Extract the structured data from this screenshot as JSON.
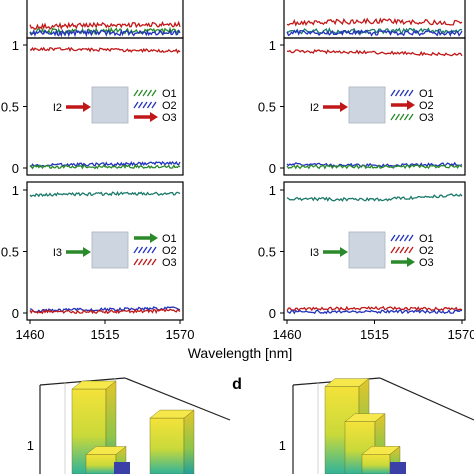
{
  "figure": {
    "xlabel": "Wavelength [nm]",
    "panel_letter_d": "d"
  },
  "colors": {
    "red": "#c01818",
    "blue": "#2233bb",
    "green": "#2a8a2a",
    "teal": "#1c7a6a",
    "box": "#cdd6e0",
    "box_edge": "#aab4c0"
  },
  "chart_data": [
    {
      "type": "line",
      "panel": "top-left-partial",
      "xlim": [
        1460,
        1570
      ],
      "ylim": [
        0,
        1
      ],
      "series": [
        {
          "color": "red",
          "x": [
            1460,
            1515,
            1570
          ],
          "values": [
            0.04,
            0.05,
            0.05
          ]
        },
        {
          "color": "green",
          "x": [
            1460,
            1515,
            1570
          ],
          "values": [
            0.02,
            0.02,
            0.02
          ]
        },
        {
          "color": "blue",
          "x": [
            1460,
            1515,
            1570
          ],
          "values": [
            0.01,
            0.01,
            0.01
          ]
        }
      ]
    },
    {
      "type": "line",
      "panel": "top-right-partial",
      "xlim": [
        1460,
        1570
      ],
      "ylim": [
        0,
        1
      ],
      "series": [
        {
          "color": "red",
          "x": [
            1460,
            1515,
            1570
          ],
          "values": [
            0.06,
            0.07,
            0.06
          ]
        },
        {
          "color": "teal",
          "x": [
            1460,
            1515,
            1570
          ],
          "values": [
            0.02,
            0.02,
            0.02
          ]
        },
        {
          "color": "blue",
          "x": [
            1460,
            1515,
            1570
          ],
          "values": [
            0.01,
            0.01,
            0.01
          ]
        }
      ]
    },
    {
      "type": "line",
      "panel": "middle-left",
      "input": "I2",
      "xlim": [
        1460,
        1570
      ],
      "ylim": [
        0,
        1
      ],
      "yticks": [
        "1",
        "0.5",
        "0"
      ],
      "series": [
        {
          "color": "red",
          "x": [
            1460,
            1515,
            1570
          ],
          "values": [
            0.97,
            0.96,
            0.95
          ]
        },
        {
          "color": "blue",
          "x": [
            1460,
            1515,
            1570
          ],
          "values": [
            0.02,
            0.03,
            0.04
          ]
        },
        {
          "color": "green",
          "x": [
            1460,
            1515,
            1570
          ],
          "values": [
            0.01,
            0.01,
            0.01
          ]
        }
      ],
      "inset": {
        "input_label": "I2",
        "input_color": "red",
        "outputs": [
          {
            "label": "O1",
            "color": "green",
            "style": "hatched"
          },
          {
            "label": "O2",
            "color": "blue",
            "style": "hatched"
          },
          {
            "label": "O3",
            "color": "red",
            "style": "solid"
          }
        ]
      }
    },
    {
      "type": "line",
      "panel": "middle-right",
      "input": "I2",
      "xlim": [
        1460,
        1570
      ],
      "ylim": [
        0,
        1
      ],
      "yticks": [
        "1",
        "0.5",
        "0"
      ],
      "series": [
        {
          "color": "red",
          "x": [
            1460,
            1515,
            1570
          ],
          "values": [
            0.95,
            0.94,
            0.92
          ]
        },
        {
          "color": "blue",
          "x": [
            1460,
            1515,
            1570
          ],
          "values": [
            0.03,
            0.02,
            0.03
          ]
        },
        {
          "color": "green",
          "x": [
            1460,
            1515,
            1570
          ],
          "values": [
            0.01,
            0.01,
            0.01
          ]
        }
      ],
      "inset": {
        "input_label": "I2",
        "input_color": "red",
        "outputs": [
          {
            "label": "O1",
            "color": "blue",
            "style": "hatched"
          },
          {
            "label": "O2",
            "color": "red",
            "style": "solid"
          },
          {
            "label": "O3",
            "color": "green",
            "style": "hatched"
          }
        ]
      }
    },
    {
      "type": "line",
      "panel": "bottom-left",
      "input": "I3",
      "xlim": [
        1460,
        1570
      ],
      "ylim": [
        0,
        1
      ],
      "yticks": [
        "1",
        "0.5",
        "0"
      ],
      "xticks": [
        "1460",
        "1515",
        "1570"
      ],
      "series": [
        {
          "color": "teal",
          "x": [
            1460,
            1515,
            1570
          ],
          "values": [
            0.96,
            0.97,
            0.97
          ]
        },
        {
          "color": "blue",
          "x": [
            1460,
            1515,
            1570
          ],
          "values": [
            0.02,
            0.03,
            0.04
          ]
        },
        {
          "color": "red",
          "x": [
            1460,
            1515,
            1570
          ],
          "values": [
            0.01,
            0.01,
            0.02
          ]
        }
      ],
      "inset": {
        "input_label": "I3",
        "input_color": "green",
        "outputs": [
          {
            "label": "O1",
            "color": "green",
            "style": "solid"
          },
          {
            "label": "O2",
            "color": "blue",
            "style": "hatched"
          },
          {
            "label": "O3",
            "color": "red",
            "style": "hatched"
          }
        ]
      }
    },
    {
      "type": "line",
      "panel": "bottom-right",
      "input": "I3",
      "xlim": [
        1460,
        1570
      ],
      "ylim": [
        0,
        1
      ],
      "yticks": [
        "1",
        "0.5",
        "0"
      ],
      "xticks": [
        "1460",
        "1515",
        "1570"
      ],
      "series": [
        {
          "color": "teal",
          "x": [
            1460,
            1515,
            1570
          ],
          "values": [
            0.93,
            0.92,
            0.96
          ]
        },
        {
          "color": "red",
          "x": [
            1460,
            1515,
            1570
          ],
          "values": [
            0.03,
            0.04,
            0.03
          ]
        },
        {
          "color": "blue",
          "x": [
            1460,
            1515,
            1570
          ],
          "values": [
            0.01,
            0.01,
            0.01
          ]
        }
      ],
      "inset": {
        "input_label": "I3",
        "input_color": "green",
        "outputs": [
          {
            "label": "O1",
            "color": "blue",
            "style": "hatched"
          },
          {
            "label": "O2",
            "color": "red",
            "style": "hatched"
          },
          {
            "label": "O3",
            "color": "green",
            "style": "solid"
          }
        ]
      }
    },
    {
      "type": "bar",
      "panel": "bottom-left-3d-partial",
      "yticks": [
        "1"
      ],
      "bars": [
        {
          "value": 1.0
        },
        {
          "value": 0.95
        },
        {
          "value": 0.55
        }
      ]
    },
    {
      "type": "bar",
      "panel": "bottom-right-3d-partial",
      "letter": "d",
      "yticks": [
        "1"
      ],
      "bars": [
        {
          "value": 1.0
        },
        {
          "value": 0.7
        },
        {
          "value": 0.5
        }
      ]
    }
  ]
}
